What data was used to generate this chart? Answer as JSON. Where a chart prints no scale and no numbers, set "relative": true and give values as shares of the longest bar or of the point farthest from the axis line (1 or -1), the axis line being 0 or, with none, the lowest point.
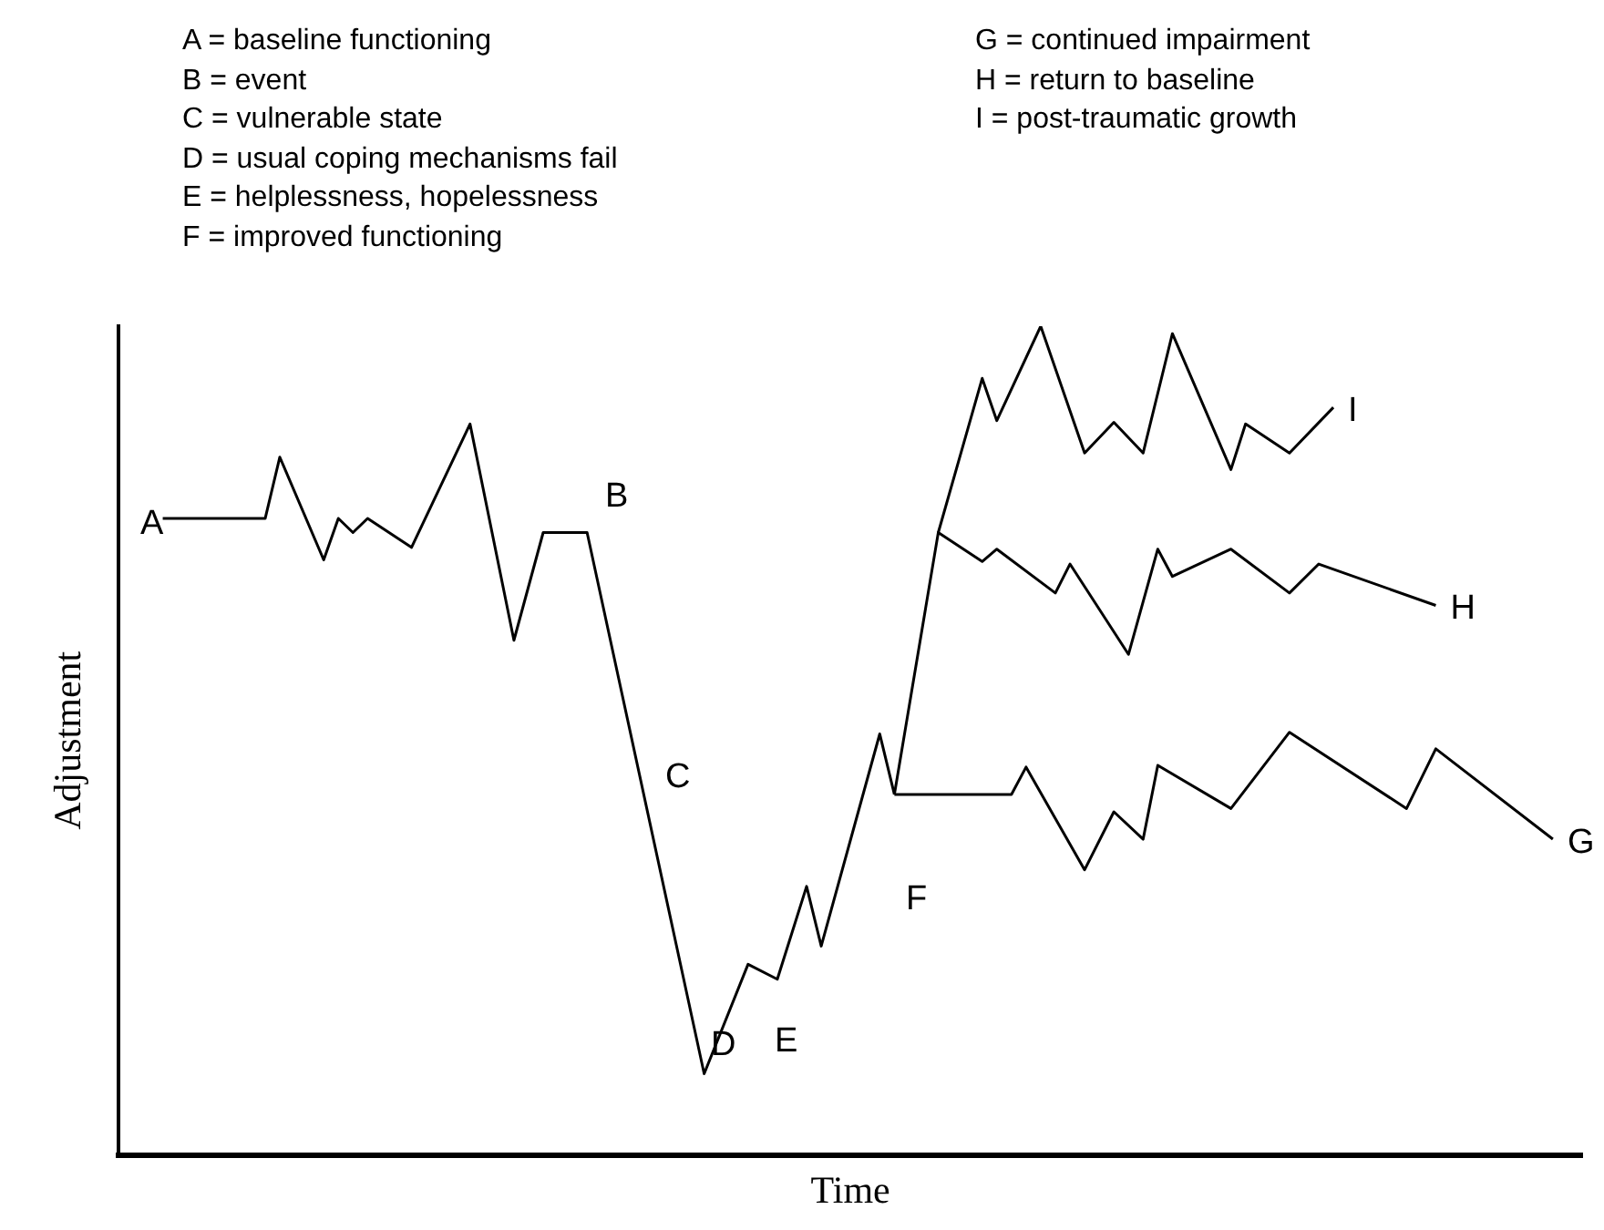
{
  "chart_data": {
    "type": "line",
    "xlabel": "Time",
    "ylabel": "Adjustment",
    "relative": true,
    "color": "#000000",
    "grid": false,
    "legend": false,
    "marker": "none",
    "line_style": "solid",
    "categories": [
      null,
      null,
      null,
      null,
      null,
      null,
      null,
      null,
      null,
      null,
      null,
      null,
      null,
      null,
      null,
      null,
      null,
      null,
      null,
      null,
      null,
      null,
      null,
      null,
      null,
      null,
      null,
      null,
      null,
      null,
      null,
      null,
      null,
      null,
      null,
      null,
      null,
      null,
      null,
      null,
      null,
      null,
      null,
      null,
      null,
      null,
      null,
      null,
      null,
      null,
      null,
      null,
      null,
      null,
      null,
      null,
      null,
      null,
      null,
      null,
      null,
      null,
      null,
      null,
      null,
      null,
      null,
      null,
      null,
      null,
      null,
      null,
      null,
      null,
      null,
      null,
      null,
      null,
      null,
      null,
      null,
      null,
      null,
      null,
      null,
      null,
      null,
      null,
      null,
      null,
      null,
      null,
      null,
      null,
      null,
      null,
      null,
      null,
      null,
      null,
      null
    ],
    "annotations": [
      "A = baseline functioning",
      "B = event",
      "C = vulnerable state",
      "D = usual coping mechanisms fail",
      "E = helplessness, hopelessness",
      "F = improved functioning",
      "G = continued impairment",
      "H = return to baseline",
      "I =  post-traumatic growth",
      "A",
      "B",
      "C",
      "D",
      "E",
      "F"
    ],
    "series": [
      {
        "values": [
          null,
          null,
          null,
          0.768,
          null,
          null,
          null,
          null,
          null,
          null,
          0.768,
          0.842,
          null,
          null,
          0.718,
          0.768,
          0.751,
          0.768,
          null,
          null,
          0.733,
          null,
          null,
          null,
          0.882,
          null,
          null,
          0.621,
          null,
          0.751,
          null,
          null,
          0.751,
          null,
          null,
          null,
          null,
          null,
          null,
          null,
          0.098,
          null,
          null,
          0.23,
          null,
          0.212,
          null,
          0.324,
          0.252,
          null,
          null,
          null,
          0.508,
          0.435,
          null,
          null,
          null,
          null,
          null,
          null,
          null,
          null,
          null,
          null,
          null,
          null,
          null,
          null,
          null,
          null,
          null,
          null,
          null,
          null,
          null,
          null,
          null,
          null,
          null,
          null,
          null,
          null,
          null,
          null,
          null,
          null,
          null,
          null,
          null,
          null,
          null,
          null,
          null,
          null,
          null,
          null,
          null,
          null,
          null,
          null,
          null
        ]
      },
      {
        "name": "G",
        "values": [
          null,
          null,
          null,
          null,
          null,
          null,
          null,
          null,
          null,
          null,
          null,
          null,
          null,
          null,
          null,
          null,
          null,
          null,
          null,
          null,
          null,
          null,
          null,
          null,
          null,
          null,
          null,
          null,
          null,
          null,
          null,
          null,
          null,
          null,
          null,
          null,
          null,
          null,
          null,
          null,
          null,
          null,
          null,
          null,
          null,
          null,
          null,
          null,
          null,
          null,
          null,
          null,
          null,
          0.435,
          null,
          null,
          null,
          null,
          null,
          null,
          null,
          0.435,
          0.468,
          null,
          null,
          null,
          0.344,
          null,
          0.414,
          null,
          0.381,
          0.47,
          null,
          null,
          null,
          null,
          0.418,
          null,
          null,
          null,
          0.51,
          null,
          null,
          null,
          null,
          null,
          null,
          null,
          0.418,
          null,
          0.49,
          null,
          null,
          null,
          null,
          null,
          null,
          null,
          0.381,
          null,
          null
        ]
      },
      {
        "name": "H",
        "values": [
          null,
          null,
          null,
          null,
          null,
          null,
          null,
          null,
          null,
          null,
          null,
          null,
          null,
          null,
          null,
          null,
          null,
          null,
          null,
          null,
          null,
          null,
          null,
          null,
          null,
          null,
          null,
          null,
          null,
          null,
          null,
          null,
          null,
          null,
          null,
          null,
          null,
          null,
          null,
          null,
          null,
          null,
          null,
          null,
          null,
          null,
          null,
          null,
          null,
          null,
          null,
          null,
          null,
          0.435,
          null,
          null,
          0.751,
          null,
          null,
          0.716,
          0.731,
          null,
          null,
          null,
          0.678,
          0.713,
          null,
          null,
          null,
          0.604,
          null,
          0.731,
          0.698,
          null,
          null,
          null,
          0.731,
          null,
          null,
          null,
          0.678,
          null,
          0.713,
          null,
          null,
          null,
          null,
          null,
          null,
          null,
          0.663,
          null,
          null,
          null,
          null,
          null,
          null,
          null,
          null,
          null,
          null
        ]
      },
      {
        "name": "I",
        "values": [
          null,
          null,
          null,
          null,
          null,
          null,
          null,
          null,
          null,
          null,
          null,
          null,
          null,
          null,
          null,
          null,
          null,
          null,
          null,
          null,
          null,
          null,
          null,
          null,
          null,
          null,
          null,
          null,
          null,
          null,
          null,
          null,
          null,
          null,
          null,
          null,
          null,
          null,
          null,
          null,
          null,
          null,
          null,
          null,
          null,
          null,
          null,
          null,
          null,
          null,
          null,
          null,
          null,
          null,
          null,
          null,
          0.751,
          null,
          null,
          0.937,
          0.886,
          null,
          null,
          1,
          null,
          null,
          0.847,
          null,
          0.884,
          null,
          0.847,
          null,
          0.991,
          null,
          null,
          null,
          0.827,
          0.882,
          null,
          null,
          0.847,
          null,
          null,
          0.902,
          null,
          null,
          null,
          null,
          null,
          null,
          null,
          null,
          null,
          null,
          null,
          null,
          null,
          null,
          null,
          null,
          null
        ]
      }
    ]
  }
}
